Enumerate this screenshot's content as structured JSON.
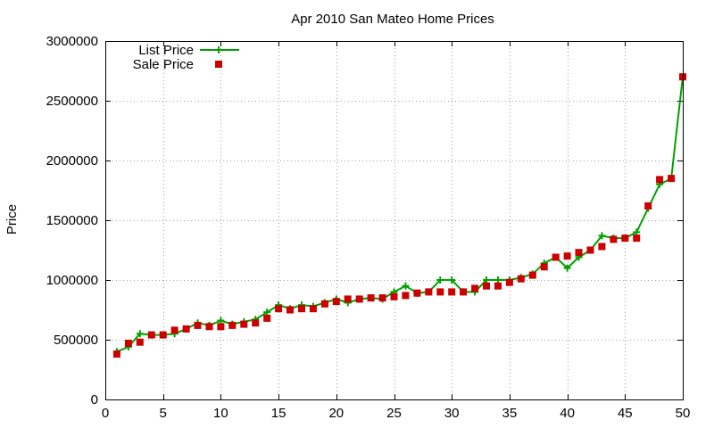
{
  "chart_data": {
    "type": "line",
    "title": "Apr 2010 San Mateo Home Prices",
    "xlabel": "",
    "ylabel": "Price",
    "xlim": [
      0,
      50
    ],
    "ylim": [
      0,
      3000000
    ],
    "x_ticks": [
      0,
      5,
      10,
      15,
      20,
      25,
      30,
      35,
      40,
      45,
      50
    ],
    "y_ticks": [
      0,
      500000,
      1000000,
      1500000,
      2000000,
      2500000,
      3000000
    ],
    "grid": true,
    "legend_position": "top-left",
    "series": [
      {
        "name": "List Price",
        "style": "line+cross",
        "color": "#00a000",
        "x": [
          1,
          2,
          3,
          4,
          5,
          6,
          7,
          8,
          9,
          10,
          11,
          12,
          13,
          14,
          15,
          16,
          17,
          18,
          19,
          20,
          21,
          22,
          23,
          24,
          25,
          26,
          27,
          28,
          29,
          30,
          31,
          32,
          33,
          34,
          35,
          36,
          37,
          38,
          39,
          40,
          41,
          42,
          43,
          44,
          45,
          46,
          47,
          48,
          49,
          50
        ],
        "values": [
          400000,
          440000,
          550000,
          540000,
          540000,
          550000,
          590000,
          640000,
          620000,
          660000,
          630000,
          650000,
          670000,
          730000,
          790000,
          760000,
          790000,
          780000,
          810000,
          840000,
          810000,
          840000,
          850000,
          840000,
          900000,
          950000,
          890000,
          900000,
          1000000,
          1000000,
          900000,
          900000,
          1000000,
          1000000,
          1000000,
          1020000,
          1050000,
          1140000,
          1190000,
          1100000,
          1190000,
          1250000,
          1370000,
          1350000,
          1350000,
          1400000,
          1600000,
          1800000,
          1850000,
          2700000
        ]
      },
      {
        "name": "Sale Price",
        "style": "square",
        "color": "#cc0000",
        "x": [
          1,
          2,
          3,
          4,
          5,
          6,
          7,
          8,
          9,
          10,
          11,
          12,
          13,
          14,
          15,
          16,
          17,
          18,
          19,
          20,
          21,
          22,
          23,
          24,
          25,
          26,
          27,
          28,
          29,
          30,
          31,
          32,
          33,
          34,
          35,
          36,
          37,
          38,
          39,
          40,
          41,
          42,
          43,
          44,
          45,
          46,
          47,
          48,
          49,
          50
        ],
        "values": [
          380000,
          470000,
          480000,
          540000,
          540000,
          580000,
          590000,
          620000,
          610000,
          610000,
          620000,
          630000,
          640000,
          680000,
          760000,
          750000,
          760000,
          760000,
          800000,
          820000,
          840000,
          840000,
          850000,
          850000,
          860000,
          870000,
          890000,
          900000,
          900000,
          900000,
          900000,
          930000,
          950000,
          950000,
          980000,
          1010000,
          1040000,
          1110000,
          1190000,
          1200000,
          1230000,
          1250000,
          1280000,
          1340000,
          1350000,
          1350000,
          1620000,
          1840000,
          1850000,
          2700000
        ]
      }
    ]
  }
}
